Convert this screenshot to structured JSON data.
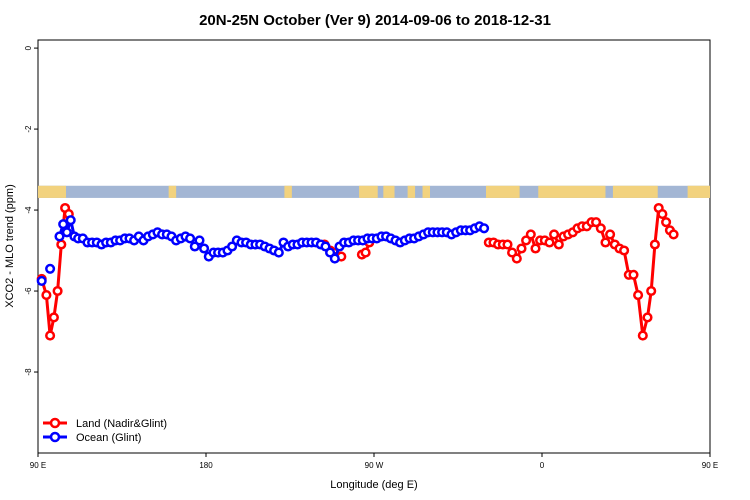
{
  "chart_data": {
    "type": "line",
    "title": "20N-25N October (Ver 9)   2014-09-06 to 2018-12-31",
    "xlabel": "Longitude (deg E)",
    "ylabel": "XCO2 - MLO trend (ppm)",
    "xlim": [
      90,
      450
    ],
    "ylim": [
      -10,
      0.2
    ],
    "x_ticks": [
      {
        "value": 90,
        "label": "90 E"
      },
      {
        "value": 180,
        "label": "180"
      },
      {
        "value": 270,
        "label": "90 W"
      },
      {
        "value": 360,
        "label": "0"
      },
      {
        "value": 450,
        "label": "90 E"
      },
      {
        "value": 540,
        "label": "180"
      }
    ],
    "y_ticks": [
      {
        "value": 0,
        "label": "0"
      },
      {
        "value": -2,
        "label": "-2"
      },
      {
        "value": -4,
        "label": "-4"
      },
      {
        "value": -6,
        "label": "-6"
      },
      {
        "value": -8,
        "label": "-8"
      }
    ],
    "grid": false,
    "legend_position": "bottom-left",
    "map_strip": {
      "y_top": -3.4,
      "y_bottom": -3.7,
      "ocean_color": "#a3b6d4",
      "land_color": "#f2d27e"
    },
    "series": [
      {
        "name": "Land (Nadir&Glint)",
        "color": "#ff0000",
        "x": [
          92,
          94.5,
          96.5,
          98.5,
          100.5,
          102.5,
          104.5,
          106.5,
          243.5,
          246.5,
          248.5,
          250.5,
          252.5,
          263.5,
          265.5,
          267.5,
          331.5,
          334,
          336.5,
          339,
          341.5,
          344,
          346.5,
          349,
          351.5,
          354,
          356.5,
          359,
          361.5,
          364,
          366.5,
          369,
          371.5,
          374,
          376.5,
          379,
          381.5,
          384,
          386.5,
          389,
          391.5,
          394,
          396.5,
          399,
          401.5,
          404,
          406.5,
          409,
          411.5,
          414,
          416.5,
          418.5,
          420.5,
          422.5,
          424.5,
          426.5,
          428.5,
          430.5
        ],
        "y": [
          -5.7,
          -6.1,
          -7.1,
          -6.65,
          -6.0,
          -4.85,
          -3.95,
          -4.1,
          -4.85,
          -5.0,
          -5.05,
          -5.15,
          -5.15,
          -5.1,
          -5.05,
          -4.8,
          -4.8,
          -4.8,
          -4.85,
          -4.85,
          -4.85,
          -5.05,
          -5.2,
          -4.95,
          -4.75,
          -4.6,
          -4.95,
          -4.75,
          -4.75,
          -4.8,
          -4.6,
          -4.85,
          -4.65,
          -4.6,
          -4.55,
          -4.45,
          -4.4,
          -4.4,
          -4.3,
          -4.3,
          -4.45,
          -4.8,
          -4.6,
          -4.85,
          -4.95,
          -5.0,
          -5.6,
          -5.6,
          -6.1,
          -7.1,
          -6.65,
          -6.0,
          -4.85,
          -3.95,
          -4.1,
          -4.3,
          -4.5,
          -4.6
        ]
      },
      {
        "name": "Ocean (Glint)",
        "color": "#0000ff",
        "x": [
          92,
          96.5,
          101.5,
          103.5,
          105.5,
          107.5,
          109.5,
          111.5,
          114,
          116.5,
          119,
          121.5,
          124,
          126.5,
          129,
          131.5,
          134,
          136.5,
          139,
          141.5,
          144,
          146.5,
          149,
          151.5,
          154,
          156.5,
          159,
          161.5,
          164,
          166.5,
          169,
          171.5,
          174,
          176.5,
          179,
          181.5,
          184,
          186.5,
          189,
          191.5,
          194,
          196.5,
          199,
          201.5,
          204,
          206.5,
          209,
          211.5,
          214,
          216.5,
          219,
          221.5,
          224,
          226.5,
          229,
          231.5,
          234,
          236.5,
          239,
          241.5,
          244,
          246.5,
          249,
          251.5,
          254,
          256.5,
          259,
          261.5,
          264,
          266.5,
          269,
          271.5,
          274,
          276.5,
          279,
          281.5,
          284,
          286.5,
          289,
          291.5,
          294,
          296.5,
          299,
          301.5,
          304,
          306.5,
          309,
          311.5,
          314,
          316.5,
          319,
          321.5,
          324,
          326.5,
          329
        ],
        "y": [
          -5.75,
          -5.45,
          -4.65,
          -4.35,
          -4.55,
          -4.25,
          -4.65,
          -4.7,
          -4.7,
          -4.8,
          -4.8,
          -4.8,
          -4.85,
          -4.8,
          -4.8,
          -4.75,
          -4.75,
          -4.7,
          -4.7,
          -4.75,
          -4.65,
          -4.75,
          -4.65,
          -4.6,
          -4.55,
          -4.6,
          -4.6,
          -4.65,
          -4.75,
          -4.7,
          -4.65,
          -4.7,
          -4.9,
          -4.75,
          -4.95,
          -5.15,
          -5.05,
          -5.05,
          -5.05,
          -5.0,
          -4.9,
          -4.75,
          -4.8,
          -4.8,
          -4.85,
          -4.85,
          -4.85,
          -4.9,
          -4.95,
          -5.0,
          -5.05,
          -4.8,
          -4.9,
          -4.85,
          -4.85,
          -4.8,
          -4.8,
          -4.8,
          -4.8,
          -4.85,
          -4.9,
          -5.05,
          -5.2,
          -4.9,
          -4.8,
          -4.8,
          -4.75,
          -4.75,
          -4.75,
          -4.7,
          -4.7,
          -4.7,
          -4.65,
          -4.65,
          -4.7,
          -4.75,
          -4.8,
          -4.75,
          -4.7,
          -4.7,
          -4.65,
          -4.6,
          -4.55,
          -4.55,
          -4.55,
          -4.55,
          -4.55,
          -4.6,
          -4.55,
          -4.5,
          -4.5,
          -4.5,
          -4.45,
          -4.4,
          -4.45
        ]
      }
    ]
  }
}
